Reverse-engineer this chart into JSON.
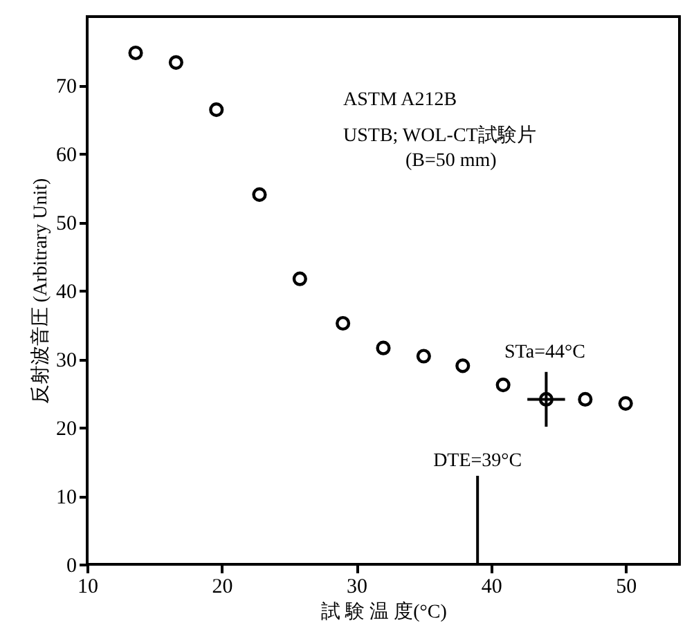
{
  "chart_data": {
    "type": "scatter",
    "xlabel": "試 験 温 度(°C)",
    "ylabel": "反射波音圧 (Arbitrary Unit)",
    "x": [
      13.6,
      16.6,
      19.6,
      22.8,
      25.8,
      29,
      32,
      35,
      37.9,
      40.9,
      44.1,
      47,
      50
    ],
    "series": [
      {
        "color": "#000000",
        "values": [
          74.7,
          73.3,
          66.4,
          54,
          41.7,
          35.2,
          31.6,
          30.4,
          29,
          26.2,
          24.1,
          24.1,
          23.5
        ],
        "errors": [
          null,
          null,
          null,
          null,
          null,
          null,
          null,
          null,
          null,
          null,
          4,
          null,
          null
        ],
        "xerrors": [
          null,
          null,
          null,
          null,
          null,
          null,
          null,
          null,
          null,
          null,
          1.4,
          null,
          null
        ]
      }
    ],
    "xlim": [
      10,
      54
    ],
    "xticks": [
      10,
      20,
      30,
      40,
      50
    ],
    "ylim": [
      0,
      80
    ],
    "yticks": [
      0,
      10,
      20,
      30,
      40,
      50,
      60,
      70
    ],
    "marker": "circle",
    "grid": false,
    "ref_lines": [
      {
        "axis": "x",
        "value": 39,
        "label": "DTE=39°C"
      }
    ],
    "annotations": [
      "ASTM A212B",
      "USTB; WOL-CT試験片",
      "(B=50 mm)",
      {
        "text": "STa=44°C",
        "x": 44,
        "y": 29
      }
    ]
  }
}
